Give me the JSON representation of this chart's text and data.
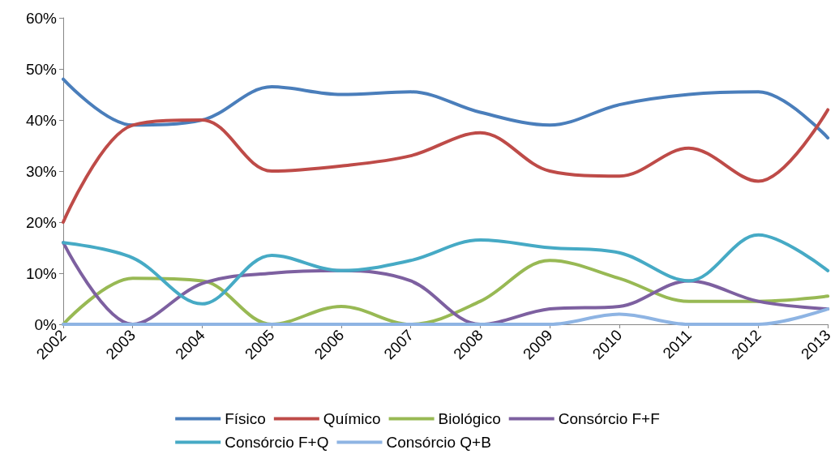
{
  "chart_data": {
    "type": "line",
    "categories": [
      "2002",
      "2003",
      "2004",
      "2005",
      "2006",
      "2007",
      "2008",
      "2009",
      "2010",
      "2011",
      "2012",
      "2013"
    ],
    "series": [
      {
        "name": "Físico",
        "color": "#4a7ebb",
        "values": [
          48,
          39,
          40,
          46.5,
          45,
          45.5,
          41.5,
          39,
          43,
          45,
          45.5,
          36.5
        ]
      },
      {
        "name": "Químico",
        "color": "#be4b48",
        "values": [
          20,
          39,
          40,
          30,
          31,
          33,
          37.5,
          30,
          29,
          34.5,
          28,
          42
        ]
      },
      {
        "name": "Biológico",
        "color": "#98b954",
        "values": [
          0,
          9,
          8.5,
          0,
          3.5,
          0,
          4.5,
          12.5,
          9,
          4.5,
          4.5,
          5.5
        ]
      },
      {
        "name": "Consórcio F+F",
        "color": "#7d60a0",
        "values": [
          16,
          0,
          8,
          10,
          10.5,
          8.5,
          0,
          3,
          3.5,
          8.5,
          4.5,
          3
        ]
      },
      {
        "name": "Consórcio F+Q",
        "color": "#46aac5",
        "values": [
          16,
          13,
          4,
          13.5,
          10.5,
          12.5,
          16.5,
          15,
          14,
          8.5,
          17.5,
          10.5
        ]
      },
      {
        "name": "Consórcio Q+B",
        "color": "#8eb4e3",
        "values": [
          0,
          0,
          0,
          0,
          0,
          0,
          0,
          0,
          2,
          0,
          0,
          3
        ]
      }
    ],
    "ylim": [
      0,
      60
    ],
    "yticks": [
      {
        "value": 0,
        "label": "0%"
      },
      {
        "value": 10,
        "label": "10%"
      },
      {
        "value": 20,
        "label": "20%"
      },
      {
        "value": 30,
        "label": "30%"
      },
      {
        "value": 40,
        "label": "40%"
      },
      {
        "value": 50,
        "label": "50%"
      },
      {
        "value": 60,
        "label": "60%"
      }
    ],
    "grid": false,
    "legend": "bottom",
    "marker": "none",
    "line_style": "solid"
  }
}
